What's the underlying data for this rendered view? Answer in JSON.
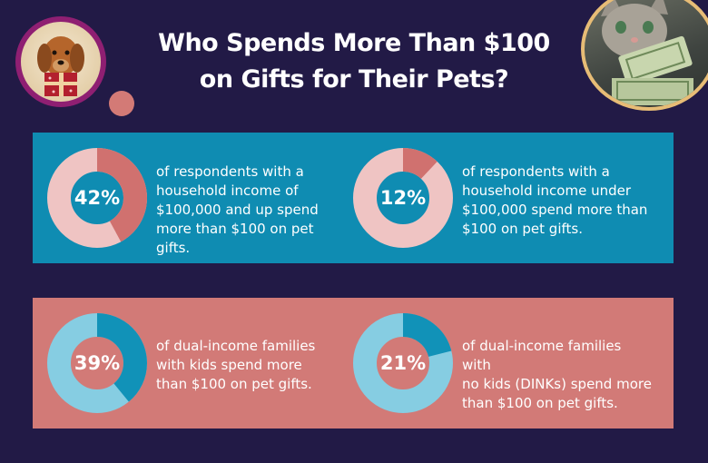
{
  "title": {
    "line1": "Who Spends More Than $100",
    "line2": "on Gifts for Their Pets?"
  },
  "images": {
    "left": "dog-with-gift-photo",
    "right": "cat-with-money-photo"
  },
  "colors": {
    "background": "#221a46",
    "panel_top": "#0f8cb2",
    "panel_bottom": "#d27a77",
    "donut_top_track": "#efc4c3",
    "donut_top_fill": "#d0716f",
    "donut_bottom_track": "#86cde2",
    "donut_bottom_fill": "#1192b8",
    "dog_border": "#8f1f72",
    "cat_border": "#e7bc76"
  },
  "chart_data": [
    {
      "type": "pie",
      "value": 42,
      "label": "42%",
      "description": [
        "of respondents with a",
        "household income of",
        "$100,000 and up spend",
        "more than $100 on pet gifts."
      ]
    },
    {
      "type": "pie",
      "value": 12,
      "label": "12%",
      "description": [
        "of respondents with a",
        "household income under",
        "$100,000 spend more than",
        "$100 on pet gifts."
      ]
    },
    {
      "type": "pie",
      "value": 39,
      "label": "39%",
      "description": [
        "of dual-income families",
        "with kids spend more",
        "than $100 on pet gifts."
      ]
    },
    {
      "type": "pie",
      "value": 21,
      "label": "21%",
      "description": [
        "of dual-income families with",
        "no kids (DINKs) spend more",
        "than $100 on pet gifts."
      ]
    }
  ]
}
